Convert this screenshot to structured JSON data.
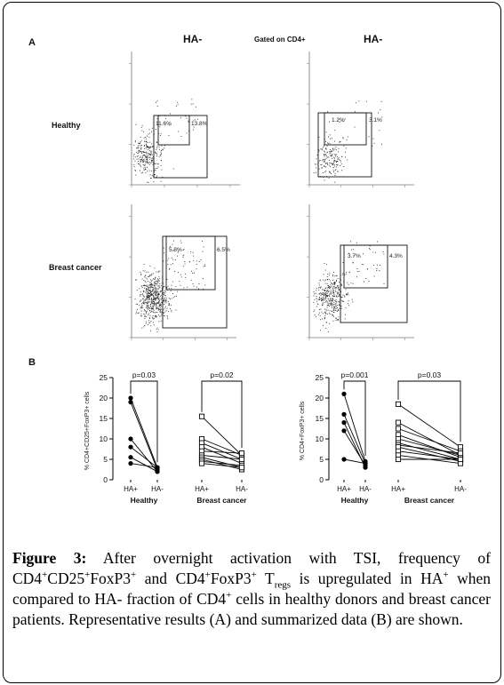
{
  "panelA": {
    "letter": "A",
    "left_title": "HA-",
    "right_title": "HA-",
    "gated": "Gated on CD4+",
    "row_healthy": "Healthy",
    "row_cancer": "Breast cancer",
    "plots": [
      {
        "inner": "11.6%",
        "outer": "13.8%"
      },
      {
        "inner": "1.2%",
        "outer": "3.1%"
      },
      {
        "inner": "5.8%",
        "outer": "6.5%"
      },
      {
        "inner": "3.7%",
        "outer": "4.3%"
      }
    ]
  },
  "panelB": {
    "letter": "B"
  },
  "chart_data": [
    {
      "type": "scatter",
      "ylabel": "% CD4+CD25+FoxP3+ cells",
      "ylim": [
        0,
        25
      ],
      "yticks": [
        0,
        5,
        10,
        15,
        20,
        25
      ],
      "groups": [
        {
          "name": "Healthy",
          "categories": [
            "HA+",
            "HA-"
          ],
          "pvalue": "p=0.03",
          "pairs": [
            [
              20,
              3
            ],
            [
              19,
              2.5
            ],
            [
              10,
              2
            ],
            [
              8,
              3
            ],
            [
              5.5,
              2
            ],
            [
              4,
              3
            ]
          ]
        },
        {
          "name": "Breast cancer",
          "categories": [
            "HA+",
            "HA-"
          ],
          "pvalue": "p=0.02",
          "pairs": [
            [
              15.5,
              6
            ],
            [
              10,
              6
            ],
            [
              9,
              5
            ],
            [
              8,
              4
            ],
            [
              7,
              6.5
            ],
            [
              6,
              5
            ],
            [
              5.5,
              3
            ],
            [
              5,
              2.5
            ],
            [
              4.5,
              3.5
            ],
            [
              4,
              3
            ]
          ]
        }
      ]
    },
    {
      "type": "scatter",
      "ylabel": "% CD4+FoxP3+ cells",
      "ylim": [
        0,
        25
      ],
      "yticks": [
        0,
        5,
        10,
        15,
        20,
        25
      ],
      "groups": [
        {
          "name": "Healthy",
          "categories": [
            "HA+",
            "HA-"
          ],
          "pvalue": "p=0.001",
          "pairs": [
            [
              21,
              4.5
            ],
            [
              16,
              4
            ],
            [
              14,
              3
            ],
            [
              12,
              3.5
            ],
            [
              5,
              4
            ]
          ]
        },
        {
          "name": "Breast cancer",
          "categories": [
            "HA+",
            "HA-"
          ],
          "pvalue": "p=0.03",
          "pairs": [
            [
              18.5,
              8
            ],
            [
              14,
              6
            ],
            [
              12.5,
              7
            ],
            [
              11,
              5.5
            ],
            [
              10,
              6
            ],
            [
              9,
              5
            ],
            [
              8.5,
              6.5
            ],
            [
              8,
              4.5
            ],
            [
              7,
              5
            ],
            [
              6,
              4
            ],
            [
              5,
              5
            ]
          ]
        }
      ]
    }
  ],
  "caption": {
    "label": "Figure 3:",
    "t1": " After overnight activation with TSI, frequency of CD4",
    "s1": "+",
    "t2": "CD25",
    "s2": "+",
    "t3": "FoxP3",
    "s3": "+",
    "t4": " and CD4",
    "s4": "+",
    "t5": "FoxP3",
    "s5": "+",
    "t6": " T",
    "sub1": "regs",
    "t7": " is upregulated in HA",
    "s6": "+",
    "t8": " when compared to HA- fraction of CD4",
    "s7": "+",
    "t9": " cells in healthy donors and breast cancer patients. Representative results (A) and summarized data (B) are shown."
  }
}
